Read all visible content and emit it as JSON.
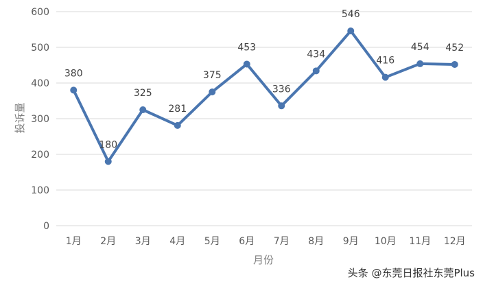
{
  "chart_data": {
    "type": "line",
    "categories": [
      "1月",
      "2月",
      "3月",
      "4月",
      "5月",
      "6月",
      "7月",
      "8月",
      "9月",
      "10月",
      "11月",
      "12月"
    ],
    "series": [
      {
        "values": [
          380,
          180,
          325,
          281,
          375,
          453,
          336,
          434,
          546,
          416,
          454,
          452
        ]
      }
    ],
    "ylabel": "投诉量",
    "xlabel": "月份",
    "ylim": [
      0,
      600
    ],
    "yticks": [
      0,
      100,
      200,
      300,
      400,
      500,
      600
    ],
    "grid": true,
    "data_labels": true,
    "line_color": "#4a76b0",
    "grid_color": "#d9d9d9"
  },
  "watermark": "头条 @东莞日报社东莞Plus"
}
